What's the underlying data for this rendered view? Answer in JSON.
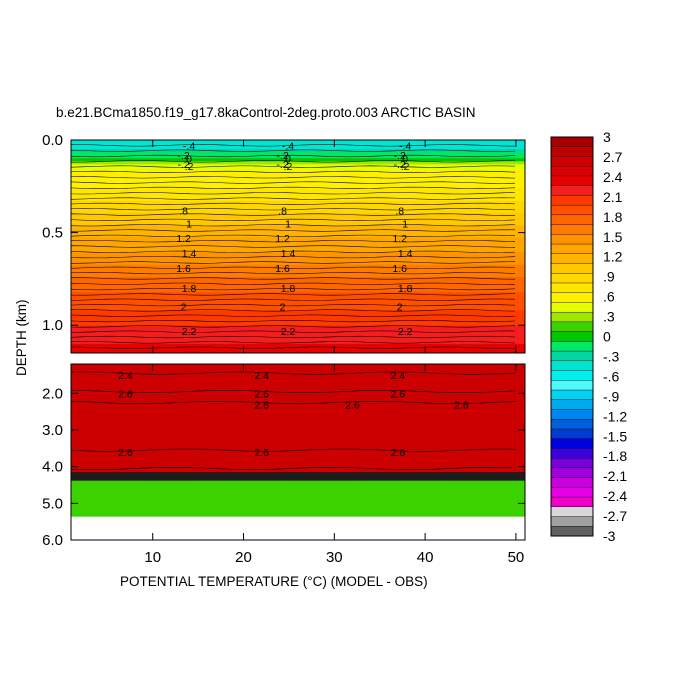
{
  "chart_data": {
    "type": "heatmap",
    "title": "b.e21.BCma1850.f19_g17.8kaControl-2deg.proto.003 ARCTIC BASIN",
    "xlabel": "POTENTIAL TEMPERATURE (°C) (MODEL - OBS)",
    "ylabel": "DEPTH (km)",
    "xlim": [
      1,
      51
    ],
    "x_ticks": [
      "10",
      "20",
      "30",
      "40",
      "50"
    ],
    "upper_panel": {
      "ylim": [
        0.0,
        1.15
      ],
      "y_ticks": [
        "0.0",
        "0.5",
        "1.0"
      ],
      "contours": [
        {
          "depth": 0.03,
          "value": "-.4"
        },
        {
          "depth": 0.08,
          "value": "-.2"
        },
        {
          "depth": 0.1,
          "value": "0"
        },
        {
          "depth": 0.13,
          "value": "-.2"
        },
        {
          "depth": 0.14,
          "value": ".2"
        },
        {
          "depth": 0.38,
          "value": ".8"
        },
        {
          "depth": 0.45,
          "value": "1"
        },
        {
          "depth": 0.53,
          "value": "1.2"
        },
        {
          "depth": 0.61,
          "value": "1.4"
        },
        {
          "depth": 0.69,
          "value": "1.6"
        },
        {
          "depth": 0.8,
          "value": "1.8"
        },
        {
          "depth": 0.9,
          "value": "2"
        },
        {
          "depth": 1.03,
          "value": "2.2"
        }
      ],
      "profile_by_depth": [
        {
          "depth": 0.0,
          "anomaly": -0.5
        },
        {
          "depth": 0.05,
          "anomaly": -0.4
        },
        {
          "depth": 0.1,
          "anomaly": 0.0
        },
        {
          "depth": 0.15,
          "anomaly": 0.5
        },
        {
          "depth": 0.3,
          "anomaly": 0.75
        },
        {
          "depth": 0.5,
          "anomaly": 1.2
        },
        {
          "depth": 0.7,
          "anomaly": 1.65
        },
        {
          "depth": 0.9,
          "anomaly": 2.0
        },
        {
          "depth": 1.15,
          "anomaly": 2.4
        }
      ]
    },
    "lower_panel": {
      "ylim": [
        1.2,
        6.0
      ],
      "y_ticks": [
        "2.0",
        "3.0",
        "4.0",
        "5.0",
        "6.0"
      ],
      "contours": [
        {
          "depth": 1.5,
          "value": "2.4"
        },
        {
          "depth": 2.0,
          "value": "2.6"
        },
        {
          "depth": 2.3,
          "value": "2.6"
        },
        {
          "depth": 3.6,
          "value": "2.6"
        }
      ],
      "bands": [
        {
          "from": 1.2,
          "to": 4.15,
          "anomaly": 2.7
        },
        {
          "from": 4.15,
          "to": 4.38,
          "anomaly": 3.0
        },
        {
          "from": 4.38,
          "to": 5.35,
          "anomaly": 0.1
        }
      ]
    },
    "colorbar": {
      "labels": [
        "3",
        "2.7",
        "2.4",
        "2.1",
        "1.8",
        "1.5",
        "1.2",
        ".9",
        ".6",
        ".3",
        "0",
        "-.3",
        "-.6",
        "-.9",
        "-1.2",
        "-1.5",
        "-1.8",
        "-2.1",
        "-2.4",
        "-2.7",
        "-3"
      ],
      "min": -3,
      "max": 3
    }
  }
}
